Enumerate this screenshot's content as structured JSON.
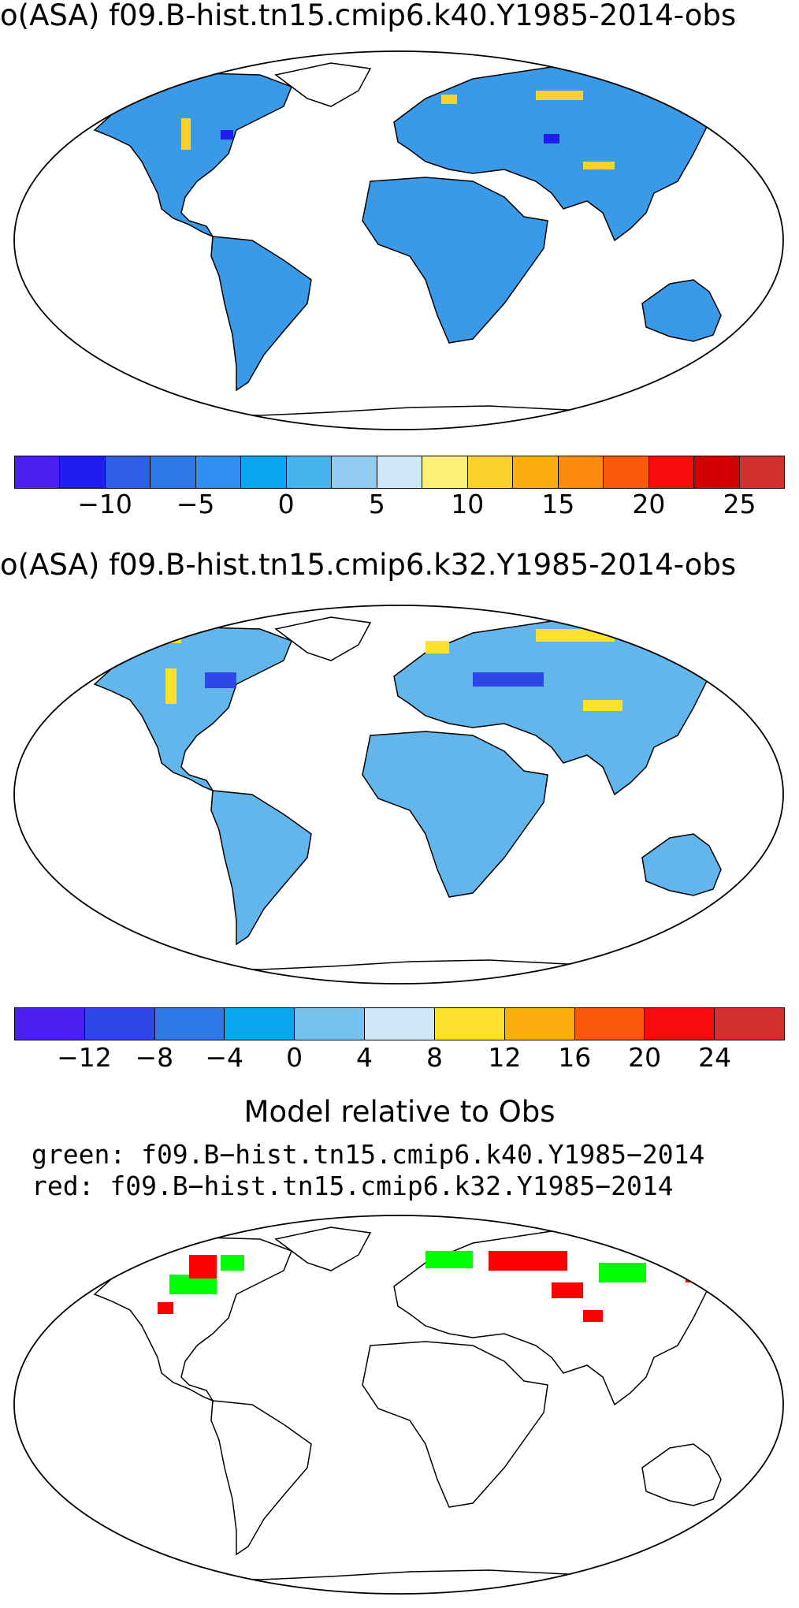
{
  "panel1": {
    "title": "o(ASA) f09.B-hist.tn15.cmip6.k40.Y1985-2014-obs",
    "colors": [
      "#4b1ef2",
      "#1e1ef0",
      "#2e5de6",
      "#2d78e8",
      "#2f8ff0",
      "#0aa6f2",
      "#45b3ee",
      "#92cdf1",
      "#cfe8f7",
      "#fdf078",
      "#fdd12c",
      "#fbae0d",
      "#fb8a0d",
      "#fb5a0c",
      "#f80b0b",
      "#d00000",
      "#d22f2f"
    ],
    "ticks": [
      "−10",
      "−5",
      "0",
      "5",
      "10",
      "15",
      "20",
      "25"
    ]
  },
  "panel2": {
    "title": "o(ASA) f09.B-hist.tn15.cmip6.k32.Y1985-2014-obs",
    "colors": [
      "#4b1ef2",
      "#2e45e8",
      "#2f78e8",
      "#0aa6f2",
      "#75c2ee",
      "#cfe8f7",
      "#fde12c",
      "#fbae0d",
      "#fb5a0c",
      "#f80b0b",
      "#d22f2f"
    ],
    "ticks": [
      "−12",
      "−8",
      "−4",
      "0",
      "4",
      "8",
      "12",
      "16",
      "20",
      "24"
    ]
  },
  "panel3": {
    "title": "Model relative to Obs",
    "line_green": "green: f09.B−hist.tn15.cmip6.k40.Y1985−2014",
    "line_red": "red: f09.B−hist.tn15.cmip6.k32.Y1985−2014",
    "green_color": "#00ff00",
    "red_color": "#ff0000"
  }
}
